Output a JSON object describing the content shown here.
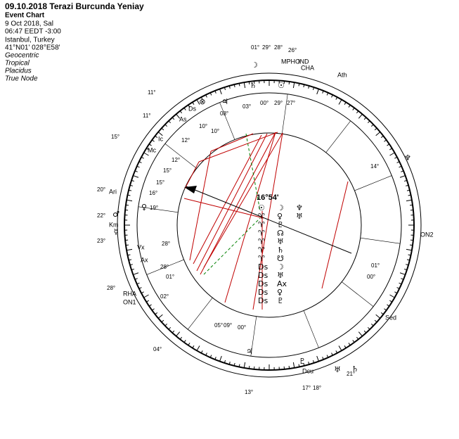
{
  "header": {
    "title": "09.10.2018 Terazi Burcunda Yeniay",
    "chart_kind": "Event Chart",
    "date": "9 Oct 2018, Sal",
    "time": "06:47  EEDT -3:00",
    "place": "Istanbul, Turkey",
    "coords": "41°N01' 028°E58'",
    "settings": [
      "Geocentric",
      "Tropical",
      "Placidus",
      "True Node"
    ]
  },
  "center_label": "16°54'",
  "center_table": [
    [
      "☉",
      "☽",
      "♆"
    ],
    [
      "♈",
      "♀",
      "♅"
    ],
    [
      "♈",
      "♇"
    ],
    [
      "♈",
      "☊"
    ],
    [
      "♈",
      "♅"
    ],
    [
      "♈",
      "♄"
    ],
    [
      "♈",
      "☋"
    ],
    [
      "Ds",
      "☽"
    ],
    [
      "Ds",
      "♅"
    ],
    [
      "Ds",
      "Ax"
    ],
    [
      "Ds",
      "♀"
    ],
    [
      "Ds",
      "♇"
    ]
  ],
  "points": [
    "Ds",
    "As",
    "Ic",
    "Mc",
    "Vx",
    "Ax",
    "Ari",
    "Km",
    "RHA",
    "ON1",
    "Ath",
    "CHA",
    "IND",
    "MPHO",
    "Sed",
    "Dcu",
    "ON2"
  ],
  "planets": [
    "♄",
    "♃",
    "♆",
    "♀",
    "♂",
    "☿",
    "♇",
    "♅",
    "☽",
    "☉",
    "⊗",
    "♄",
    "♃"
  ],
  "degrees": [
    "03°",
    "00°",
    "29°",
    "27°",
    "08°",
    "10°",
    "10°",
    "12°",
    "12°",
    "15°",
    "15°",
    "19°",
    "28°",
    "28°",
    "01°",
    "02°",
    "05°",
    "09°",
    "00°",
    "13°",
    "01°",
    "00°",
    "14°",
    "11°",
    "11°",
    "15°",
    "20°",
    "22°",
    "23°",
    "28°",
    "04°",
    "21°",
    "17°",
    "18°",
    "16°",
    "01°",
    "29°",
    "28°",
    "26°"
  ]
}
